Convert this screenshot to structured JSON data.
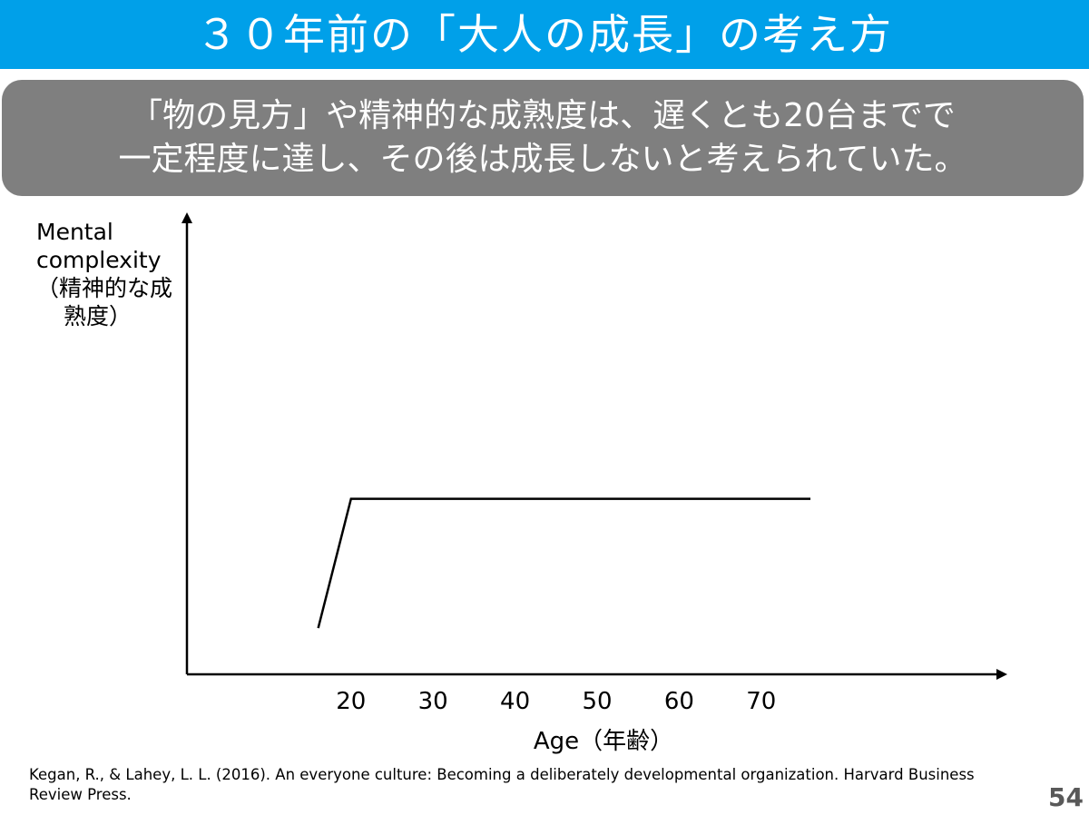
{
  "slide": {
    "title": "３０年前の「大人の成長」の考え方",
    "summary_lines": [
      "「物の見方」や精神的な成熟度は、遅くとも20台までで",
      "一定程度に達し、その後は成長しないと考えられていた。"
    ],
    "citation": "Kegan, R., & Lahey, L. L. (2016). An everyone culture: Becoming a deliberately developmental organization. Harvard Business Review Press.",
    "page_number": "54",
    "colors": {
      "title_bar": "#00a0e9",
      "summary_box": "#7f7f7f",
      "line": "#000000"
    }
  },
  "chart_data": {
    "type": "line",
    "title": "",
    "ylabel_lines": [
      "Mental",
      "complexity",
      "（精神的な成",
      "熟度）"
    ],
    "xlabel": "Age（年齢）",
    "x_ticks": [
      20,
      30,
      40,
      50,
      60,
      70
    ],
    "x_tick_labels": [
      "20",
      "30",
      "40",
      "50",
      "60",
      "70"
    ],
    "xlim": [
      0,
      100
    ],
    "ylim": [
      0,
      100
    ],
    "y_ticks": [],
    "grid": false,
    "legend": "none",
    "series": [
      {
        "x": [
          16,
          20,
          76
        ],
        "y": [
          10,
          38,
          38
        ]
      }
    ]
  }
}
